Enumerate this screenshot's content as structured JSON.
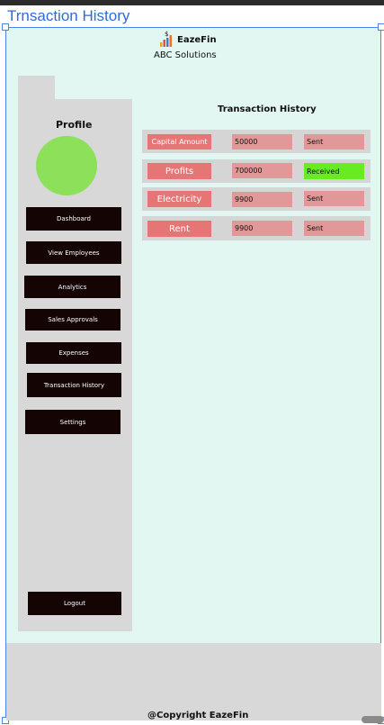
{
  "frame": {
    "title": "Trnsaction History"
  },
  "header": {
    "brand": "EazeFin",
    "company": "ABC Solutions",
    "logo_icon": "dollar-bar-chart-icon"
  },
  "sidebar": {
    "profile_title": "Profile",
    "items": [
      {
        "label": "Dashboard"
      },
      {
        "label": "View Employees"
      },
      {
        "label": "Analytics"
      },
      {
        "label": "Sales Approvals"
      },
      {
        "label": "Expenses"
      },
      {
        "label": "Transaction History"
      },
      {
        "label": "Settings"
      }
    ],
    "logout": "Logout"
  },
  "main": {
    "title": "Transaction History",
    "transactions": [
      {
        "label": "Capital Amount",
        "amount": "50000",
        "status": "Sent"
      },
      {
        "label": "Profits",
        "amount": "700000",
        "status": "Received"
      },
      {
        "label": "Electricity",
        "amount": "9900",
        "status": "Sent"
      },
      {
        "label": "Rent",
        "amount": "9900",
        "status": "Sent"
      }
    ]
  },
  "footer": {
    "copyright": "@Copyright EazeFin"
  },
  "colors": {
    "frame_bg": "#e2f6f2",
    "button_dark": "#140404",
    "label_red": "#e67676",
    "value_pink": "#e29898",
    "received_green": "#67ec24",
    "avatar_green": "#8de05a"
  }
}
